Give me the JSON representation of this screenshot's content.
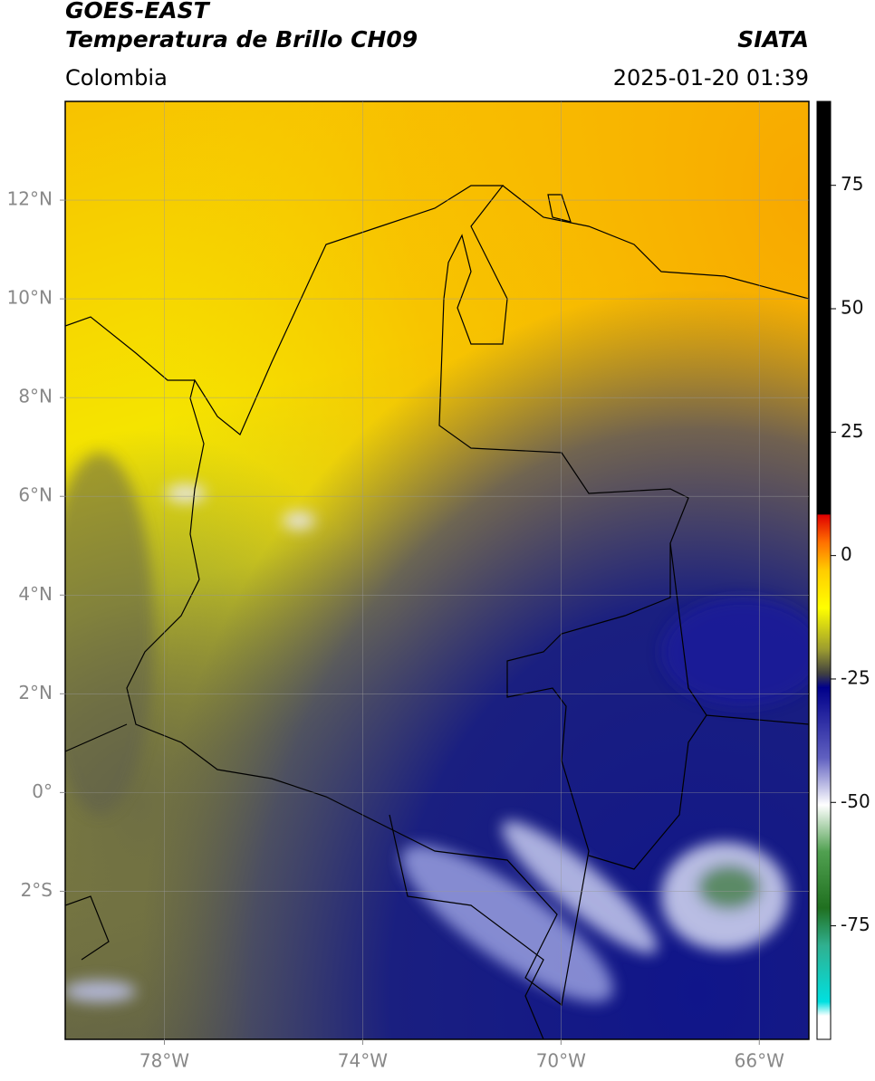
{
  "header": {
    "title": "GOES-EAST",
    "subtitle": "Temperatura de Brillo CH09",
    "source": "SIATA",
    "region": "Colombia",
    "timestamp": "2025-01-20 01:39"
  },
  "map": {
    "xlim": [
      -80,
      -65
    ],
    "ylim": [
      -5,
      14
    ],
    "grid": true,
    "xticks": [
      {
        "value": -78,
        "label": "78°W"
      },
      {
        "value": -74,
        "label": "74°W"
      },
      {
        "value": -70,
        "label": "70°W"
      },
      {
        "value": -66,
        "label": "66°W"
      }
    ],
    "yticks": [
      {
        "value": 12,
        "label": "12°N"
      },
      {
        "value": 10,
        "label": "10°N"
      },
      {
        "value": 8,
        "label": "8°N"
      },
      {
        "value": 6,
        "label": "6°N"
      },
      {
        "value": 4,
        "label": "4°N"
      },
      {
        "value": 2,
        "label": "2°N"
      },
      {
        "value": 0,
        "label": "0°"
      },
      {
        "value": -2,
        "label": "2°S"
      }
    ]
  },
  "colorbar": {
    "clim": [
      -98,
      92
    ],
    "ticks": [
      75,
      50,
      25,
      0,
      -25,
      -50,
      -75
    ]
  }
}
